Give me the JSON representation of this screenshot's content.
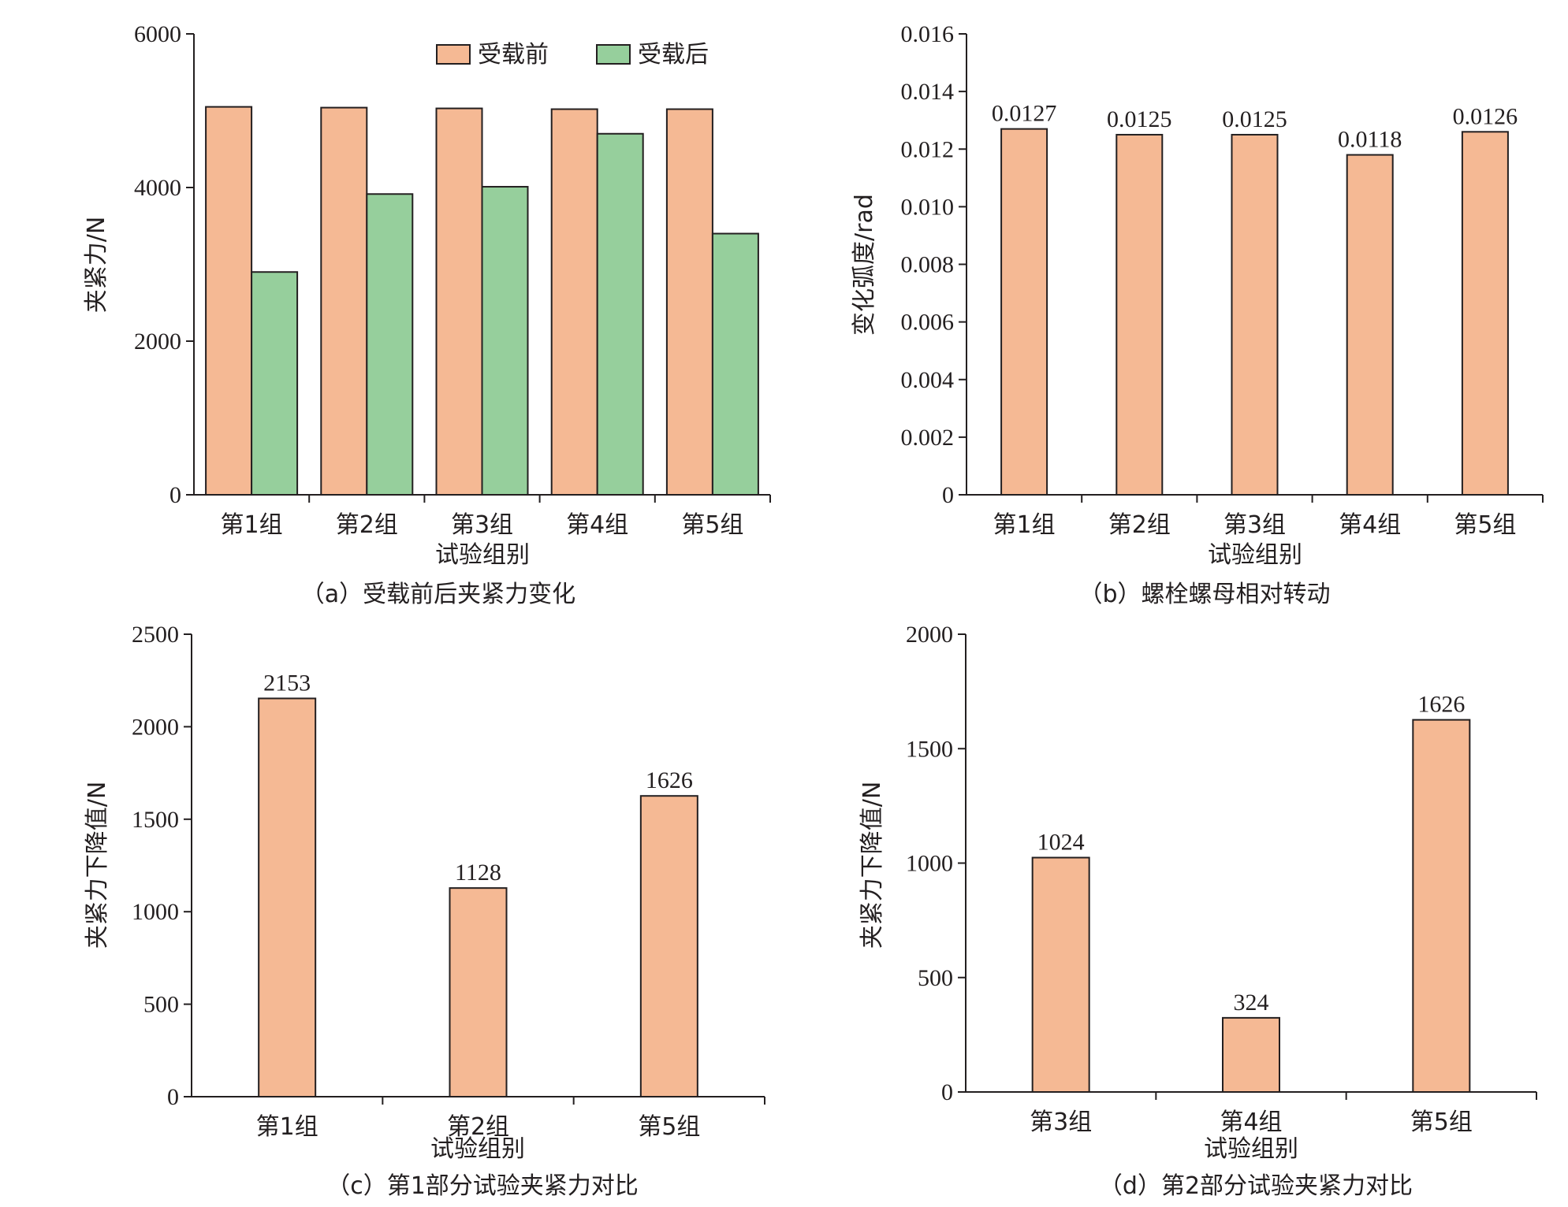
{
  "colors": {
    "before": "#f5b994",
    "after": "#96cf9c",
    "axis": "#231f20"
  },
  "chart_data": [
    {
      "id": "a",
      "type": "bar",
      "caption": "（a）受载前后夹紧力变化",
      "xlabel": "试验组别",
      "ylabel": "夹紧力/N",
      "ylim": [
        0,
        6000
      ],
      "yticks": [
        "0",
        "2000",
        "4000",
        "6000"
      ],
      "categories": [
        "第1组",
        "第2组",
        "第3组",
        "第4组",
        "第5组"
      ],
      "series": [
        {
          "name": "受载前",
          "values": [
            5050,
            5040,
            5030,
            5020,
            5020
          ]
        },
        {
          "name": "受载后",
          "values": [
            2900,
            3915,
            4010,
            4700,
            3400
          ]
        }
      ],
      "data_labels": [],
      "legend": "top-right"
    },
    {
      "id": "b",
      "type": "bar",
      "caption": "（b）螺栓螺母相对转动",
      "xlabel": "试验组别",
      "ylabel": "变化弧度/rad",
      "ylim": [
        0,
        0.016
      ],
      "yticks": [
        "0",
        "0.002",
        "0.004",
        "0.006",
        "0.008",
        "0.010",
        "0.012",
        "0.014",
        "0.016"
      ],
      "categories": [
        "第1组",
        "第2组",
        "第3组",
        "第4组",
        "第5组"
      ],
      "series": [
        {
          "values": [
            0.0127,
            0.0125,
            0.0125,
            0.0118,
            0.0126
          ]
        }
      ],
      "data_labels": [
        "0.0127",
        "0.0125",
        "0.0125",
        "0.0118",
        "0.0126"
      ]
    },
    {
      "id": "c",
      "type": "bar",
      "caption": "（c）第1部分试验夹紧力对比",
      "xlabel": "试验组别",
      "ylabel": "夹紧力下降值/N",
      "ylim": [
        0,
        2500
      ],
      "yticks": [
        "0",
        "500",
        "1000",
        "1500",
        "2000",
        "2500"
      ],
      "categories": [
        "第1组",
        "第2组",
        "第5组"
      ],
      "series": [
        {
          "values": [
            2153,
            1128,
            1626
          ]
        }
      ],
      "data_labels": [
        "2153",
        "1128",
        "1626"
      ]
    },
    {
      "id": "d",
      "type": "bar",
      "caption": "（d）第2部分试验夹紧力对比",
      "xlabel": "试验组别",
      "ylabel": "夹紧力下降值/N",
      "ylim": [
        0,
        2000
      ],
      "yticks": [
        "0",
        "500",
        "1000",
        "1500",
        "2000"
      ],
      "categories": [
        "第3组",
        "第4组",
        "第5组"
      ],
      "series": [
        {
          "values": [
            1024,
            324,
            1626
          ]
        }
      ],
      "data_labels": [
        "1024",
        "324",
        "1626"
      ]
    }
  ]
}
